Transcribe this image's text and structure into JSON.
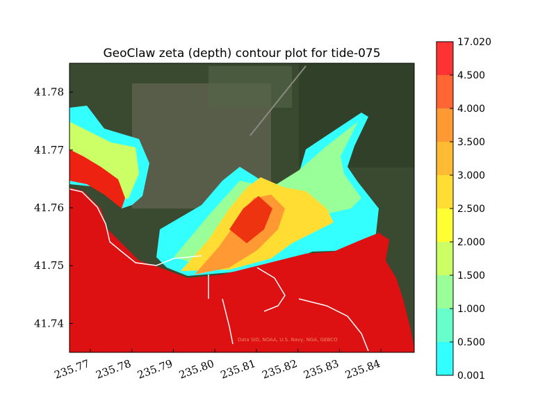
{
  "chart_data": {
    "type": "heatmap",
    "title": "GeoClaw zeta (depth) contour plot for tide-075",
    "xlabel": "",
    "ylabel": "",
    "xlim": [
      235.765,
      235.848
    ],
    "ylim": [
      41.735,
      41.785
    ],
    "x_ticks": [
      "235.77",
      "235.78",
      "235.79",
      "235.80",
      "235.81",
      "235.82",
      "235.83",
      "235.84"
    ],
    "y_ticks": [
      "41.74",
      "41.75",
      "41.76",
      "41.77",
      "41.78"
    ],
    "colorbar": {
      "levels": [
        "0.001",
        "0.500",
        "1.000",
        "1.500",
        "2.000",
        "2.500",
        "3.000",
        "3.500",
        "4.000",
        "4.500",
        "17.020"
      ],
      "colors": [
        "#33ffff",
        "#66ffcc",
        "#99ff99",
        "#ccff66",
        "#ffff33",
        "#ffdd33",
        "#ffbb33",
        "#ff9933",
        "#ff6633",
        "#ff3333"
      ]
    },
    "background": "satellite imagery",
    "coastline_color": "#ffffff",
    "credit": "Data SIO, NOAA, U.S. Navy, NGA, GEBCO"
  }
}
